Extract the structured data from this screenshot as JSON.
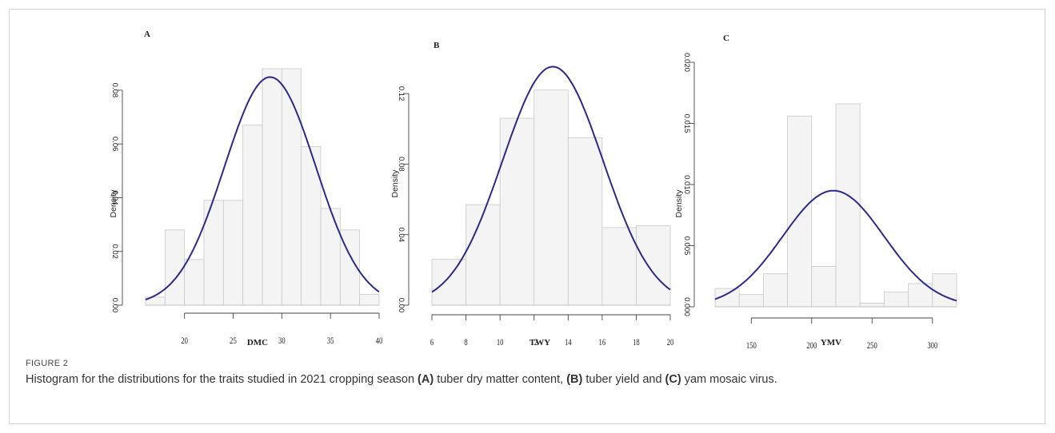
{
  "figure": {
    "label": "FIGURE 2",
    "caption": [
      {
        "text": "Histogram for the distributions for the traits studied in 2021 cropping season ",
        "bold": false
      },
      {
        "text": "(A)",
        "bold": true
      },
      {
        "text": " tuber dry matter content, ",
        "bold": false
      },
      {
        "text": "(B)",
        "bold": true
      },
      {
        "text": " tuber yield and ",
        "bold": false
      },
      {
        "text": "(C)",
        "bold": true
      },
      {
        "text": " yam mosaic virus.",
        "bold": false
      }
    ]
  },
  "colors": {
    "bar_fill": "#f4f4f4",
    "bar_stroke": "#c8c8c8",
    "curve": "#2b2a8a",
    "axis": "#444444",
    "text": "#222222"
  },
  "chart_data": [
    {
      "type": "bar",
      "panel": "A",
      "xlabel": "DMC",
      "ylabel": "Density",
      "bins": [
        [
          16,
          18
        ],
        [
          18,
          20
        ],
        [
          20,
          22
        ],
        [
          22,
          24
        ],
        [
          24,
          26
        ],
        [
          26,
          28
        ],
        [
          28,
          30
        ],
        [
          30,
          32
        ],
        [
          32,
          34
        ],
        [
          34,
          36
        ],
        [
          36,
          38
        ],
        [
          38,
          40
        ]
      ],
      "values": [
        0.003,
        0.028,
        0.017,
        0.039,
        0.039,
        0.067,
        0.088,
        0.088,
        0.059,
        0.036,
        0.028,
        0.004
      ],
      "curve": {
        "distribution": "normal",
        "mean": 28.8,
        "sd": 4.7
      },
      "xlim": [
        16,
        40
      ],
      "ylim": [
        0,
        0.088
      ],
      "xticks": [
        20,
        25,
        30,
        35,
        40
      ],
      "yticks": [
        0.0,
        0.02,
        0.04,
        0.06,
        0.08
      ],
      "ytick_labels": [
        "0.00",
        "0.02",
        "0.04",
        "0.06",
        "0.08"
      ]
    },
    {
      "type": "bar",
      "panel": "B",
      "xlabel": "TWY",
      "ylabel": "Density",
      "bins": [
        [
          6,
          8
        ],
        [
          8,
          10
        ],
        [
          10,
          12
        ],
        [
          12,
          14
        ],
        [
          14,
          16
        ],
        [
          16,
          18
        ],
        [
          18,
          20
        ]
      ],
      "values": [
        0.026,
        0.057,
        0.106,
        0.122,
        0.095,
        0.044,
        0.045
      ],
      "curve": {
        "distribution": "normal",
        "mean": 13.1,
        "sd": 2.95
      },
      "xlim": [
        6,
        20
      ],
      "ylim": [
        0,
        0.135
      ],
      "xticks": [
        6,
        8,
        10,
        12,
        14,
        16,
        18,
        20
      ],
      "yticks": [
        0.0,
        0.04,
        0.08,
        0.12
      ],
      "ytick_labels": [
        "0.00",
        "0.04",
        "0.08",
        "0.12"
      ]
    },
    {
      "type": "bar",
      "panel": "C",
      "xlabel": "YMV",
      "ylabel": "Density",
      "bins": [
        [
          120,
          140
        ],
        [
          140,
          160
        ],
        [
          160,
          180
        ],
        [
          180,
          200
        ],
        [
          200,
          220
        ],
        [
          220,
          240
        ],
        [
          240,
          260
        ],
        [
          260,
          280
        ],
        [
          280,
          300
        ],
        [
          300,
          320
        ]
      ],
      "values": [
        0.0015,
        0.001,
        0.0027,
        0.0156,
        0.0033,
        0.0166,
        0.0003,
        0.0012,
        0.0019,
        0.0027
      ],
      "curve": {
        "distribution": "normal",
        "mean": 218,
        "sd": 42
      },
      "xlim": [
        120,
        320
      ],
      "ylim": [
        0,
        0.02
      ],
      "xticks": [
        150,
        200,
        250,
        300
      ],
      "yticks": [
        0.0,
        0.005,
        0.01,
        0.015,
        0.02
      ],
      "ytick_labels": [
        "0.000",
        "0.005",
        "0.010",
        "0.015",
        "0.020"
      ]
    }
  ]
}
